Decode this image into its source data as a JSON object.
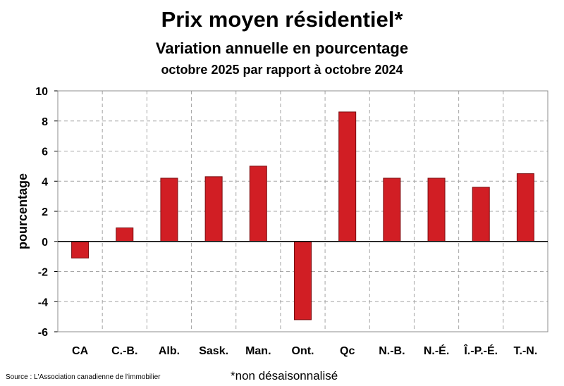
{
  "chart_data": {
    "type": "bar",
    "title": "Prix moyen résidentiel*",
    "subtitle": "Variation annuelle en pourcentage",
    "subtitle2": "octobre 2025 par rapport à octobre 2024",
    "ylabel": "pourcentage",
    "xlabel": "",
    "categories": [
      "CA",
      "C.-B.",
      "Alb.",
      "Sask.",
      "Man.",
      "Ont.",
      "Qc",
      "N.-B.",
      "N.-É.",
      "Î.-P.-É.",
      "T.-N."
    ],
    "values": [
      -1.1,
      0.9,
      4.2,
      4.3,
      5.0,
      -5.2,
      8.6,
      4.2,
      4.2,
      3.6,
      4.5
    ],
    "ylim": [
      -6,
      10
    ],
    "yticks": [
      -6,
      -4,
      -2,
      0,
      2,
      4,
      6,
      8,
      10
    ],
    "grid": true,
    "legend": "none",
    "bar_color": "#d11e24"
  },
  "footer": {
    "source": "Source : L'Association canadienne de l'immobilier",
    "note": "*non désaisonnalisé"
  }
}
